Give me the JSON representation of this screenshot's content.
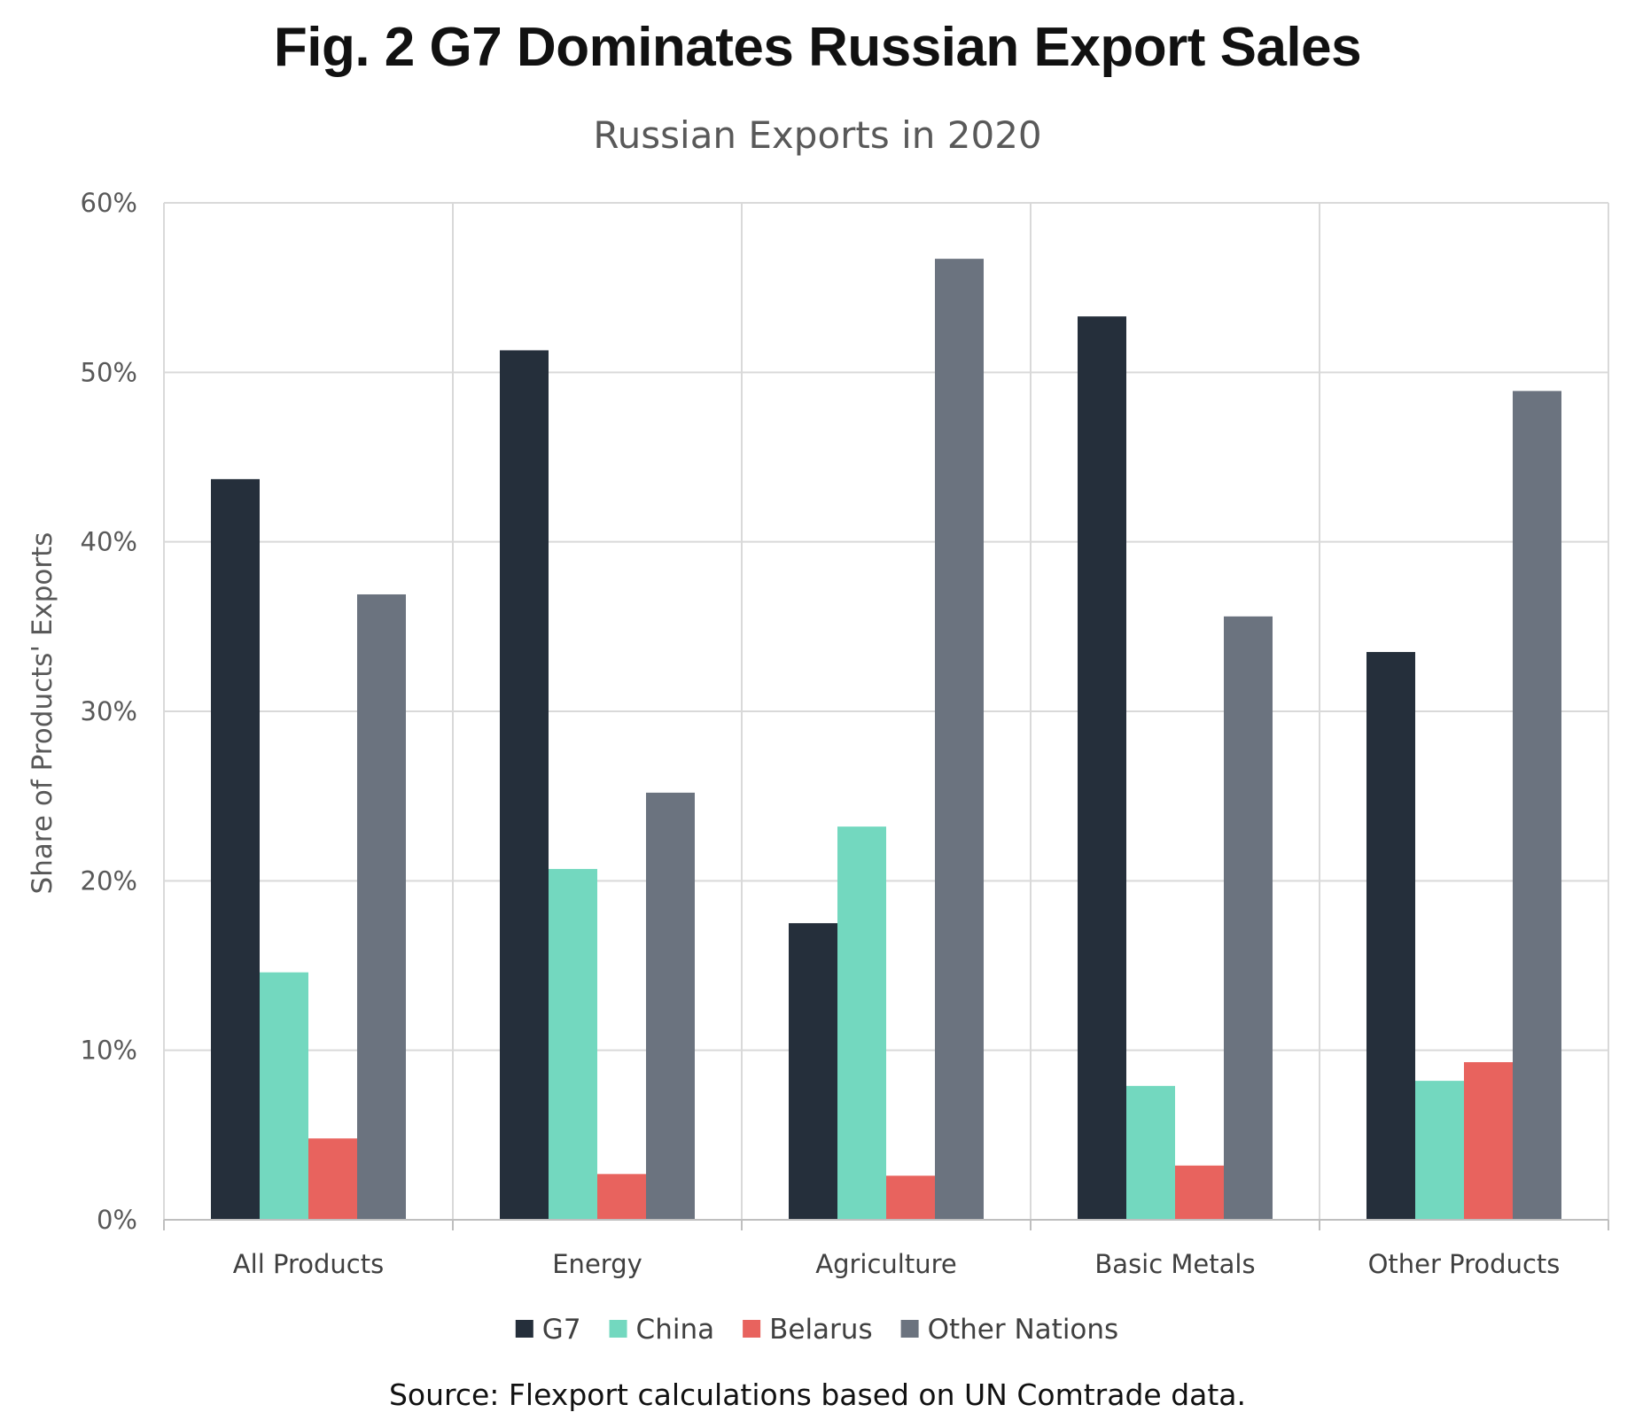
{
  "figure_title": "Fig. 2 G7 Dominates Russian Export Sales",
  "source_note": "Source: Flexport calculations based on UN Comtrade data.",
  "chart_data": {
    "type": "bar",
    "title": "Russian Exports in 2020",
    "xlabel": "",
    "ylabel": "Share of Products' Exports",
    "ylim": [
      0,
      60
    ],
    "yticks": [
      "0%",
      "10%",
      "20%",
      "30%",
      "40%",
      "50%",
      "60%"
    ],
    "grid": true,
    "legend_position": "bottom",
    "categories": [
      "All Products",
      "Energy",
      "Agriculture",
      "Basic Metals",
      "Other Products"
    ],
    "series": [
      {
        "name": "G7",
        "color": "#252f3b",
        "values": [
          43.7,
          51.3,
          17.5,
          53.3,
          33.5
        ]
      },
      {
        "name": "China",
        "color": "#73d8bf",
        "values": [
          14.6,
          20.7,
          23.2,
          7.9,
          8.2
        ]
      },
      {
        "name": "Belarus",
        "color": "#e8635e",
        "values": [
          4.8,
          2.7,
          2.6,
          3.2,
          9.3
        ]
      },
      {
        "name": "Other Nations",
        "color": "#6b737f",
        "values": [
          36.9,
          25.2,
          56.7,
          35.6,
          48.9
        ]
      }
    ]
  }
}
